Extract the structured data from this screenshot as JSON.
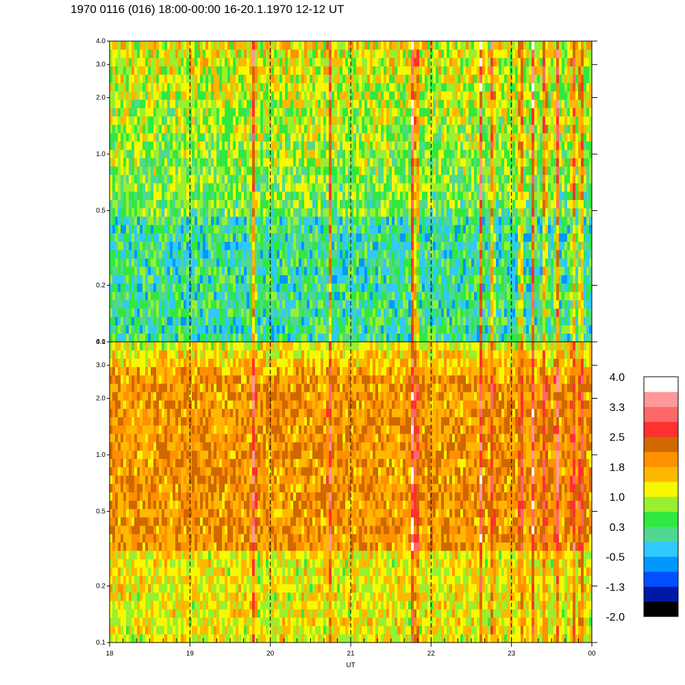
{
  "title": "1970 0116 (016) 18:00-00:00 16-20.1.1970  12-12 UT",
  "chart_data": {
    "type": "heatmap",
    "xlabel": "UT",
    "x_ticks": [
      "18",
      "19",
      "20",
      "21",
      "22",
      "23",
      "00"
    ],
    "x_range": [
      18,
      24
    ],
    "y_scale": "log",
    "y_ticks": [
      "0.1",
      "0.2",
      "0.5",
      "1.0",
      "2.0",
      "3.0",
      "4.0"
    ],
    "y_range": [
      0.1,
      4.0
    ],
    "panels": [
      {
        "id": "upper",
        "dominant": "green-cyan",
        "base_level": 0.3
      },
      {
        "id": "lower",
        "dominant": "yellow-orange",
        "base_level": 1.6
      }
    ],
    "dashed_gridlines_at": [
      19,
      20,
      21,
      22,
      23
    ],
    "colorbar": {
      "labels": [
        "4.0",
        "3.3",
        "2.5",
        "1.8",
        "1.0",
        "0.3",
        "-0.5",
        "-1.3",
        "-2.0"
      ],
      "colors": [
        "#000000",
        "#0018a8",
        "#0050ff",
        "#0098ff",
        "#30c8ff",
        "#50d890",
        "#30e840",
        "#98f030",
        "#f8f800",
        "#ffb800",
        "#ff9000",
        "#d06800",
        "#ff3030",
        "#ff6868",
        "#ff9898",
        "#ffffff"
      ]
    }
  }
}
